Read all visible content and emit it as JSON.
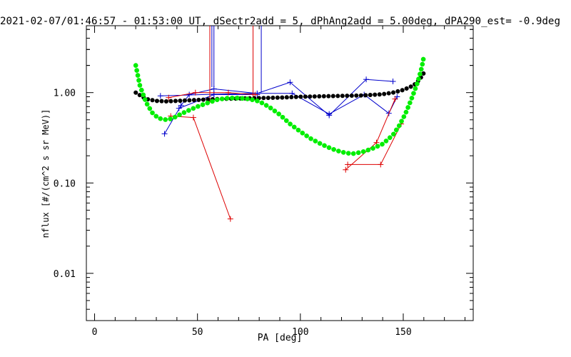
{
  "chart_data": {
    "type": "line",
    "title": "2021-02-07/01:46:57 - 01:53:00 UT, dSectr2add = 5, dPhAng2add = 5.00deg, dPA290_est=  -0.9deg",
    "xlabel": "PA [deg]",
    "ylabel": "nflux [#/(cm^2 s sr MeV)]",
    "xlim": [
      -4,
      184
    ],
    "ylim": [
      0.003,
      5.5
    ],
    "yscale": "log",
    "grid": false,
    "x_ticks": [
      0,
      50,
      100,
      150
    ],
    "x_tick_labels": [
      "0",
      "50",
      "100",
      "150"
    ],
    "y_ticks": [
      0.01,
      0.1,
      1.0
    ],
    "y_tick_labels": [
      "0.01",
      "0.10",
      "1.00"
    ],
    "colors": {
      "blue": "#0000cc",
      "red": "#dd0000",
      "black": "#000000",
      "green": "#00ee00"
    },
    "series": [
      {
        "color": "#0000cc",
        "style": "line+plus",
        "x": [
          34,
          42,
          46,
          58,
          79,
          95,
          114,
          132,
          145
        ],
        "y": [
          0.35,
          0.72,
          0.95,
          1.1,
          0.98,
          1.3,
          0.56,
          1.4,
          1.33
        ]
      },
      {
        "color": "#0000cc",
        "style": "line+plus",
        "x": [
          32,
          58,
          77,
          96,
          114,
          131,
          143,
          147
        ],
        "y": [
          0.92,
          0.96,
          0.98,
          0.98,
          0.58,
          0.95,
          0.59,
          0.9
        ]
      },
      {
        "color": "#0000cc",
        "style": "line+plus",
        "x": [
          41,
          58,
          79
        ],
        "y": [
          0.67,
          0.95,
          0.95
        ]
      },
      {
        "color": "#0000cc",
        "style": "vline",
        "x": [
          57,
          58,
          81
        ],
        "y": [
          1.15,
          1.15,
          1.0
        ]
      },
      {
        "color": "#dd0000",
        "style": "line+plus",
        "x": [
          37,
          48,
          66
        ],
        "y": [
          0.55,
          0.53,
          0.04
        ]
      },
      {
        "color": "#dd0000",
        "style": "line+plus",
        "x": [
          36,
          49,
          65,
          78
        ],
        "y": [
          0.88,
          1.0,
          1.0,
          0.95
        ]
      },
      {
        "color": "#dd0000",
        "style": "line+plus",
        "x": [
          122,
          137,
          146
        ],
        "y": [
          0.14,
          0.28,
          0.85
        ]
      },
      {
        "color": "#dd0000",
        "style": "line+plus",
        "x": [
          123,
          139,
          149
        ],
        "y": [
          0.16,
          0.16,
          0.45
        ]
      },
      {
        "color": "#dd0000",
        "style": "vline",
        "x": [
          56,
          77
        ],
        "y": [
          0.78,
          0.9
        ]
      },
      {
        "color": "#000000",
        "style": "dots",
        "x": [
          20,
          25,
          30,
          35,
          40,
          50,
          60,
          70,
          80,
          90,
          100,
          110,
          120,
          130,
          140,
          145,
          150,
          155,
          158,
          160
        ],
        "y": [
          1.0,
          0.85,
          0.81,
          0.8,
          0.81,
          0.83,
          0.85,
          0.86,
          0.87,
          0.88,
          0.9,
          0.91,
          0.92,
          0.93,
          0.96,
          1.0,
          1.07,
          1.2,
          1.4,
          1.65
        ]
      },
      {
        "color": "#00ee00",
        "style": "dots",
        "x": [
          20,
          22,
          25,
          28,
          31,
          35,
          38,
          42,
          46,
          50,
          55,
          60,
          65,
          70,
          75,
          80,
          85,
          90,
          95,
          100,
          105,
          110,
          115,
          120,
          125,
          130,
          135,
          140,
          145,
          148,
          151,
          154,
          157,
          159,
          160
        ],
        "y": [
          2.0,
          1.2,
          0.78,
          0.6,
          0.52,
          0.5,
          0.52,
          0.58,
          0.64,
          0.7,
          0.77,
          0.84,
          0.87,
          0.87,
          0.85,
          0.8,
          0.69,
          0.57,
          0.45,
          0.37,
          0.31,
          0.27,
          0.24,
          0.22,
          0.21,
          0.22,
          0.24,
          0.27,
          0.34,
          0.43,
          0.58,
          0.85,
          1.3,
          1.9,
          2.5
        ]
      }
    ]
  }
}
